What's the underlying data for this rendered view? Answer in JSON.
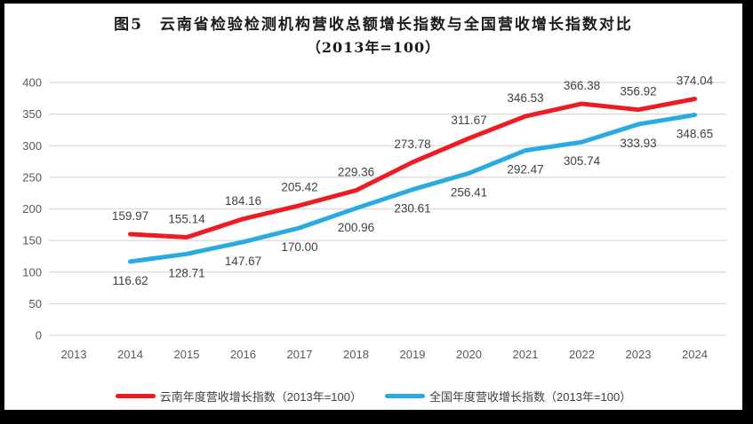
{
  "chart_data": {
    "type": "line",
    "title": "图5　云南省检验检测机构营收总额增长指数与全国营收增长指数对比",
    "subtitle": "（2013年=100）",
    "x_categories": [
      "2013",
      "2014",
      "2015",
      "2016",
      "2017",
      "2018",
      "2019",
      "2020",
      "2021",
      "2022",
      "2023",
      "2024"
    ],
    "xlabel": "",
    "ylabel": "",
    "ylim": [
      0,
      400
    ],
    "ytick_step": 50,
    "grid": true,
    "legend_position": "bottom",
    "colors": {
      "yunnan_red": "#ed1c24",
      "national_blue": "#29abe2",
      "gridline": "#d9d9d9",
      "axis_text": "#595959",
      "data_label": "#404040",
      "background": "#ffffff",
      "border": "#000000"
    },
    "series": [
      {
        "name": "云南年度营收增长指数（2013年=100）",
        "color": "#ed1c24",
        "start_year": "2014",
        "values": [
          159.97,
          155.14,
          184.16,
          205.42,
          229.36,
          273.78,
          311.67,
          346.53,
          366.38,
          356.92,
          374.04
        ],
        "labels": [
          "159.97",
          "155.14",
          "184.16",
          "205.42",
          "229.36",
          "273.78",
          "311.67",
          "346.53",
          "366.38",
          "356.92",
          "374.04"
        ],
        "label_side": "above"
      },
      {
        "name": "全国年度营收增长指数（2013年=100）",
        "color": "#29abe2",
        "start_year": "2014",
        "values": [
          116.62,
          128.71,
          147.67,
          170.0,
          200.96,
          230.61,
          256.41,
          292.47,
          305.74,
          333.93,
          348.65
        ],
        "labels": [
          "116.62",
          "128.71",
          "147.67",
          "170.00",
          "200.96",
          "230.61",
          "256.41",
          "292.47",
          "305.74",
          "333.93",
          "348.65"
        ],
        "label_side": "below"
      }
    ]
  }
}
